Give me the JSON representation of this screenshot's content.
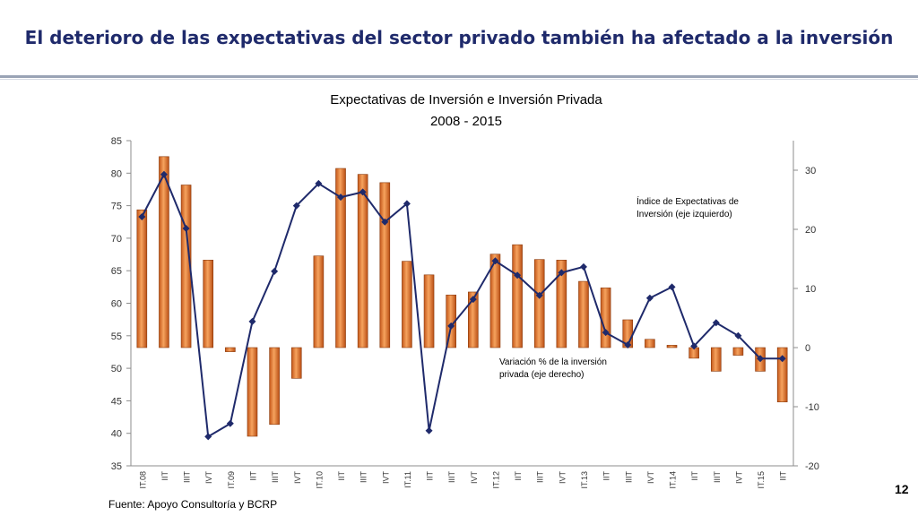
{
  "slide": {
    "title": "El deterioro de las expectativas del sector privado también ha afectado a la inversión",
    "source": "Fuente: Apoyo Consultoría y BCRP",
    "page_number": "12"
  },
  "chart_data": {
    "type": "bar+line",
    "title": "Expectativas de Inversión e Inversión Privada",
    "subtitle": "2008 - 2015",
    "categories": [
      "IT.08",
      "IIT",
      "IIIT",
      "IVT",
      "IT.09",
      "IIT",
      "IIIT",
      "IVT",
      "IT.10",
      "IIT",
      "IIIT",
      "IVT",
      "IT.11",
      "IIT",
      "IIIT",
      "IVT",
      "IT.12",
      "IIT",
      "IIIT",
      "IVT",
      "IT.13",
      "IIT",
      "IIIT",
      "IVT",
      "IT.14",
      "IIT",
      "IIIT",
      "IVT",
      "IT.15",
      "IIT"
    ],
    "left_axis": {
      "min": 35,
      "max": 85,
      "step": 5,
      "ticks": [
        "85",
        "80",
        "75",
        "70",
        "65",
        "60",
        "55",
        "50",
        "45",
        "40",
        "35"
      ]
    },
    "right_axis": {
      "min": -20,
      "max": 35,
      "ticks": [
        "30",
        "20",
        "10",
        "0",
        "-10",
        "-20"
      ],
      "tick_values": [
        30,
        20,
        10,
        0,
        -10,
        -20
      ]
    },
    "series": [
      {
        "name": "Variación % de la inversión privada (eje derecho)",
        "type": "bar",
        "axis": "right",
        "color": "#e97d2b",
        "values": [
          23.3,
          32.3,
          27.5,
          14.8,
          -0.7,
          -15.0,
          -13.0,
          -5.2,
          15.5,
          30.3,
          29.3,
          27.9,
          14.6,
          12.3,
          8.9,
          9.4,
          15.8,
          17.4,
          14.9,
          14.8,
          11.2,
          10.1,
          4.7,
          1.4,
          0.4,
          -1.8,
          -4.0,
          -1.3,
          -4.0,
          -9.2
        ]
      },
      {
        "name": "Índice de Expectativas de Inversión (eje izquierdo)",
        "type": "line",
        "axis": "left",
        "color": "#1f2a6b",
        "values": [
          73.3,
          79.8,
          71.5,
          39.5,
          41.5,
          57.2,
          64.9,
          75.0,
          78.4,
          76.3,
          77.1,
          72.5,
          75.3,
          40.4,
          56.5,
          60.6,
          66.5,
          64.3,
          61.2,
          64.7,
          65.6,
          55.5,
          53.6,
          60.8,
          62.5,
          53.4,
          57.0,
          55.0,
          51.5,
          51.5
        ]
      }
    ],
    "annotations": {
      "line_label": "Índice de Expectativas de Inversión (eje izquierdo)",
      "bar_label": "Variación % de la inversión privada (eje derecho)"
    },
    "grid": false,
    "legend": "inline annotations"
  }
}
